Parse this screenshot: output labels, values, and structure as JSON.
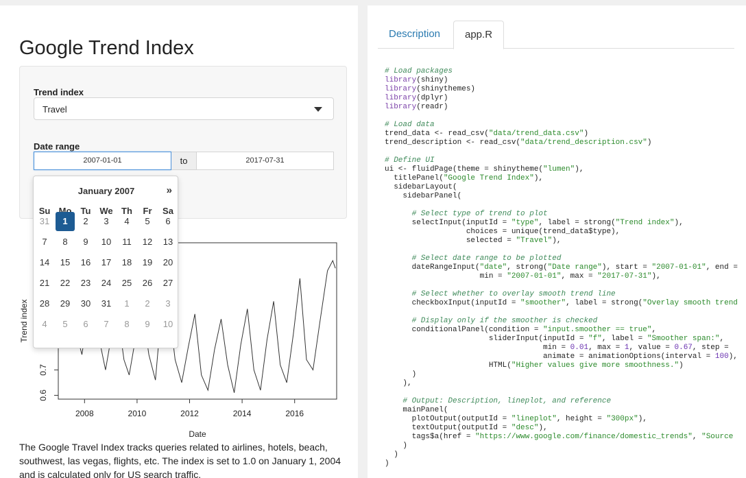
{
  "app": {
    "title": "Google Trend Index",
    "trend_label": "Trend index",
    "trend_value": "Travel",
    "date_label": "Date range",
    "date_start": "2007-01-01",
    "date_sep": "to",
    "date_end": "2017-07-31",
    "description": "The Google Travel Index tracks queries related to airlines, hotels, beach, southwest, las vegas, flights, etc. The index is set to 1.0 on January 1, 2004 and is calculated only for US search traffic."
  },
  "datepicker": {
    "month": "January 2007",
    "next": "»",
    "weekdays": [
      "Su",
      "Mo",
      "Tu",
      "We",
      "Th",
      "Fr",
      "Sa"
    ],
    "weeks": [
      [
        "31",
        "1",
        "2",
        "3",
        "4",
        "5",
        "6"
      ],
      [
        "7",
        "8",
        "9",
        "10",
        "11",
        "12",
        "13"
      ],
      [
        "14",
        "15",
        "16",
        "17",
        "18",
        "19",
        "20"
      ],
      [
        "21",
        "22",
        "23",
        "24",
        "25",
        "26",
        "27"
      ],
      [
        "28",
        "29",
        "30",
        "31",
        "1",
        "2",
        "3"
      ],
      [
        "4",
        "5",
        "6",
        "7",
        "8",
        "9",
        "10"
      ]
    ],
    "selected": "1"
  },
  "chart_data": {
    "type": "line",
    "xlabel": "Date",
    "ylabel": "Trend index",
    "x_ticks": [
      "2008",
      "2010",
      "2012",
      "2014",
      "2016"
    ],
    "y_ticks": [
      "0.6",
      "0.7"
    ],
    "xlim": [
      2007.0,
      2017.6
    ],
    "ylim": [
      0.585,
      1.2
    ],
    "series": [
      {
        "x": [
          2007.0,
          2007.2,
          2007.45,
          2007.7,
          2007.9,
          2008.1,
          2008.35,
          2008.6,
          2008.8,
          2009.0,
          2009.25,
          2009.5,
          2009.7,
          2009.95,
          2010.2,
          2010.45,
          2010.7,
          2010.9,
          2011.15,
          2011.45,
          2011.7,
          2011.95,
          2012.2,
          2012.45,
          2012.7,
          2012.95,
          2013.2,
          2013.45,
          2013.7,
          2013.95,
          2014.2,
          2014.45,
          2014.7,
          2014.95,
          2015.2,
          2015.45,
          2015.7,
          2015.95,
          2016.2,
          2016.45,
          2016.7,
          2016.95,
          2017.25,
          2017.45,
          2017.55
        ],
        "y": [
          0.8,
          0.88,
          0.96,
          0.84,
          0.76,
          0.9,
          0.95,
          0.8,
          0.7,
          0.82,
          0.93,
          0.74,
          0.68,
          0.83,
          0.94,
          0.76,
          0.66,
          0.9,
          1.0,
          0.74,
          0.65,
          0.79,
          0.92,
          0.68,
          0.62,
          0.78,
          0.9,
          0.72,
          0.61,
          0.8,
          0.94,
          0.7,
          0.62,
          0.82,
          0.97,
          0.72,
          0.65,
          0.84,
          1.06,
          0.74,
          0.7,
          0.88,
          1.09,
          1.13,
          1.1
        ]
      }
    ]
  },
  "tabs": {
    "description": "Description",
    "app_r": "app.R"
  },
  "code": [
    [
      [
        "cm",
        "# Load packages"
      ]
    ],
    [
      [
        "fn",
        "library"
      ],
      [
        "",
        "(shiny)"
      ]
    ],
    [
      [
        "fn",
        "library"
      ],
      [
        "",
        "(shinythemes)"
      ]
    ],
    [
      [
        "fn",
        "library"
      ],
      [
        "",
        "(dplyr)"
      ]
    ],
    [
      [
        "fn",
        "library"
      ],
      [
        "",
        "(readr)"
      ]
    ],
    [],
    [
      [
        "cm",
        "# Load data"
      ]
    ],
    [
      [
        "",
        "trend_data <- read_csv("
      ],
      [
        "st",
        "\"data/trend_data.csv\""
      ],
      [
        "",
        ")"
      ]
    ],
    [
      [
        "",
        "trend_description <- read_csv("
      ],
      [
        "st",
        "\"data/trend_description.csv\""
      ],
      [
        "",
        ")"
      ]
    ],
    [],
    [
      [
        "cm",
        "# Define UI"
      ]
    ],
    [
      [
        "",
        "ui <- fluidPage(theme = shinytheme("
      ],
      [
        "st",
        "\"lumen\""
      ],
      [
        "",
        "),"
      ]
    ],
    [
      [
        "",
        "  titlePanel("
      ],
      [
        "st",
        "\"Google Trend Index\""
      ],
      [
        "",
        "),"
      ]
    ],
    [
      [
        "",
        "  sidebarLayout("
      ]
    ],
    [
      [
        "",
        "    sidebarPanel("
      ]
    ],
    [],
    [
      [
        "cm",
        "      # Select type of trend to plot"
      ]
    ],
    [
      [
        "",
        "      selectInput(inputId = "
      ],
      [
        "st",
        "\"type\""
      ],
      [
        "",
        ", label = strong("
      ],
      [
        "st",
        "\"Trend index\""
      ],
      [
        "",
        "),"
      ]
    ],
    [
      [
        "",
        "                  choices = unique(trend_data$type),"
      ]
    ],
    [
      [
        "",
        "                  selected = "
      ],
      [
        "st",
        "\"Travel\""
      ],
      [
        "",
        "),"
      ]
    ],
    [],
    [
      [
        "cm",
        "      # Select date range to be plotted"
      ]
    ],
    [
      [
        "",
        "      dateRangeInput("
      ],
      [
        "st",
        "\"date\""
      ],
      [
        "",
        ", strong("
      ],
      [
        "st",
        "\"Date range\""
      ],
      [
        "",
        "), start = "
      ],
      [
        "st",
        "\"2007-01-01\""
      ],
      [
        "",
        ", end ="
      ]
    ],
    [
      [
        "",
        "                     min = "
      ],
      [
        "st",
        "\"2007-01-01\""
      ],
      [
        "",
        ", max = "
      ],
      [
        "st",
        "\"2017-07-31\""
      ],
      [
        "",
        "),"
      ]
    ],
    [],
    [
      [
        "cm",
        "      # Select whether to overlay smooth trend line"
      ]
    ],
    [
      [
        "",
        "      checkboxInput(inputId = "
      ],
      [
        "st",
        "\"smoother\""
      ],
      [
        "",
        ", label = strong("
      ],
      [
        "st",
        "\"Overlay smooth trend"
      ]
    ],
    [],
    [
      [
        "cm",
        "      # Display only if the smoother is checked"
      ]
    ],
    [
      [
        "",
        "      conditionalPanel(condition = "
      ],
      [
        "st",
        "\"input.smoother == true\""
      ],
      [
        "",
        ","
      ]
    ],
    [
      [
        "",
        "                       sliderInput(inputId = "
      ],
      [
        "st",
        "\"f\""
      ],
      [
        "",
        ", label = "
      ],
      [
        "st",
        "\"Smoother span:\""
      ],
      [
        "",
        ","
      ]
    ],
    [
      [
        "",
        "                                   min = "
      ],
      [
        "nu",
        "0.01"
      ],
      [
        "",
        ", max = "
      ],
      [
        "nu",
        "1"
      ],
      [
        "",
        ", value = "
      ],
      [
        "nu",
        "0.67"
      ],
      [
        "",
        ", step = "
      ]
    ],
    [
      [
        "",
        "                                   animate = animationOptions(interval = "
      ],
      [
        "nu",
        "100"
      ],
      [
        "",
        "),"
      ]
    ],
    [
      [
        "",
        "                       HTML("
      ],
      [
        "st",
        "\"Higher values give more smoothness.\""
      ],
      [
        "",
        ")"
      ]
    ],
    [
      [
        "",
        "      )"
      ]
    ],
    [
      [
        "",
        "    ),"
      ]
    ],
    [],
    [
      [
        "cm",
        "    # Output: Description, lineplot, and reference"
      ]
    ],
    [
      [
        "",
        "    mainPanel("
      ]
    ],
    [
      [
        "",
        "      plotOutput(outputId = "
      ],
      [
        "st",
        "\"lineplot\""
      ],
      [
        "",
        ", height = "
      ],
      [
        "st",
        "\"300px\""
      ],
      [
        "",
        "),"
      ]
    ],
    [
      [
        "",
        "      textOutput(outputId = "
      ],
      [
        "st",
        "\"desc\""
      ],
      [
        "",
        "),"
      ]
    ],
    [
      [
        "",
        "      tags$a(href = "
      ],
      [
        "st",
        "\"https://www.google.com/finance/domestic_trends\""
      ],
      [
        "",
        ", "
      ],
      [
        "st",
        "\"Source"
      ]
    ],
    [
      [
        "",
        "    )"
      ]
    ],
    [
      [
        "",
        "  )"
      ]
    ],
    [
      [
        "",
        ")"
      ]
    ]
  ]
}
